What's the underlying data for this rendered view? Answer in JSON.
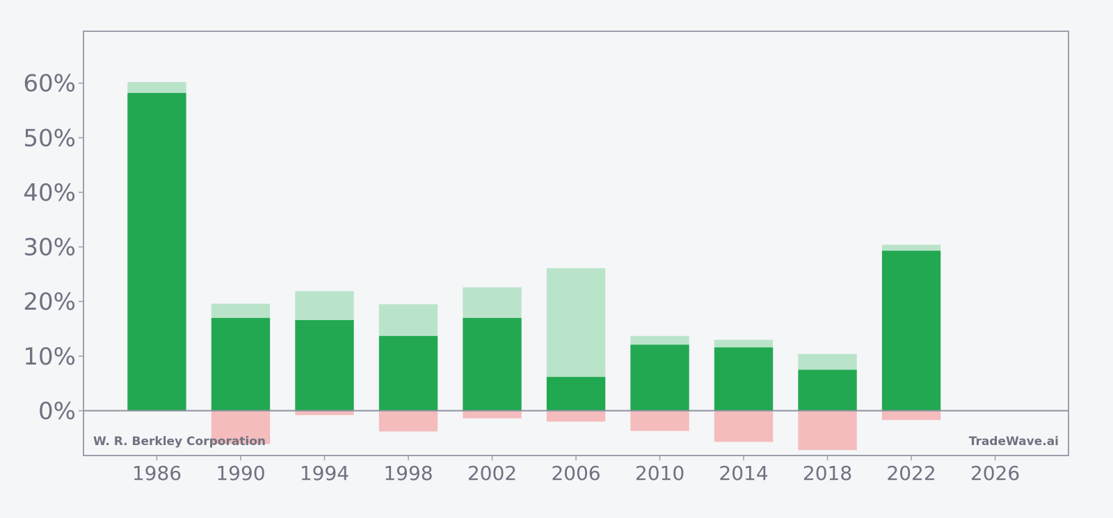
{
  "chart_data": {
    "type": "bar",
    "x": [
      1986,
      1990,
      1994,
      1998,
      2002,
      2006,
      2010,
      2014,
      2018,
      2022
    ],
    "series": [
      {
        "values": [
          58.2,
          17.0,
          16.6,
          13.7,
          17.0,
          6.2,
          12.1,
          11.6,
          7.5,
          29.3
        ],
        "color": "#22a851"
      },
      {
        "values": [
          2.0,
          2.6,
          5.3,
          5.8,
          5.6,
          19.9,
          1.6,
          1.4,
          2.9,
          1.1
        ],
        "color": "#bae4ca"
      },
      {
        "values": [
          0.0,
          -6.1,
          -0.8,
          -3.8,
          -1.4,
          -2.0,
          -3.7,
          -5.7,
          -7.2,
          -1.7
        ],
        "color": "#f4bcbd"
      }
    ],
    "x_ticks": [
      "1986",
      "1990",
      "1994",
      "1998",
      "2002",
      "2006",
      "2010",
      "2014",
      "2018",
      "2022",
      "2026"
    ],
    "x_tick_values": [
      1986,
      1990,
      1994,
      1998,
      2002,
      2006,
      2010,
      2014,
      2018,
      2022,
      2026
    ],
    "y_ticks": [
      "0%",
      "10%",
      "20%",
      "30%",
      "40%",
      "50%",
      "60%"
    ],
    "y_tick_values": [
      0,
      10,
      20,
      30,
      40,
      50,
      60
    ],
    "xlim": [
      1982.5,
      2029.5
    ],
    "ylim": [
      -8.2,
      69.5
    ],
    "grid": false,
    "zero_line_color": "#8e929e",
    "frame_color": "#9a9eaa"
  },
  "labels": {
    "company": "W. R. Berkley Corporation",
    "brand": "TradeWave.ai"
  }
}
